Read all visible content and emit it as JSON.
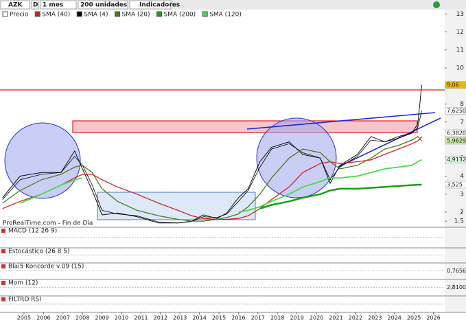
{
  "toolbar": {
    "symbol": "AZK",
    "mode": "D",
    "period": "1 mes",
    "units": "200 unidades",
    "indicators": "Indicadores"
  },
  "watermark": "ProRealTime.com - Fin de Día",
  "chart_data": {
    "type": "line",
    "x": [
      2003.9,
      2004.8,
      2005.9,
      2006.9,
      2007.6,
      2008.0,
      2008.5,
      2009.0,
      2009.8,
      2010.8,
      2011.9,
      2012.9,
      2013.6,
      2014.2,
      2014.9,
      2015.4,
      2016.0,
      2016.5,
      2017.1,
      2017.7,
      2018.6,
      2019.3,
      2020.2,
      2020.7,
      2021.2,
      2022.1,
      2022.8,
      2023.5,
      2024.2,
      2024.9,
      2025.2,
      2025.4
    ],
    "series": [
      {
        "name": "Precio",
        "color": "#111111",
        "width": 1,
        "values": [
          2.8,
          4.0,
          4.2,
          4.2,
          5.4,
          4.4,
          3.2,
          1.85,
          1.95,
          1.75,
          1.4,
          1.4,
          1.5,
          1.85,
          1.65,
          1.95,
          2.8,
          3.3,
          4.8,
          5.6,
          5.9,
          5.2,
          5.0,
          3.6,
          4.6,
          5.2,
          6.2,
          5.9,
          6.2,
          6.4,
          6.9,
          9.06
        ]
      },
      {
        "name": "SMA (40)",
        "color": "#d42020",
        "width": 1.3,
        "values": [
          2.2,
          2.6,
          3.0,
          3.5,
          3.9,
          4.1,
          4.1,
          3.8,
          3.4,
          3.0,
          2.5,
          2.1,
          1.8,
          1.65,
          1.6,
          1.6,
          1.65,
          1.8,
          2.2,
          2.7,
          3.4,
          4.2,
          4.7,
          4.8,
          4.7,
          4.8,
          4.9,
          5.2,
          5.5,
          5.8,
          5.95,
          6.2
        ]
      },
      {
        "name": "SMA (4)",
        "color": "#000000",
        "width": 0.8,
        "values": [
          2.7,
          3.8,
          4.1,
          4.2,
          5.1,
          4.6,
          3.5,
          2.1,
          1.9,
          1.8,
          1.45,
          1.4,
          1.48,
          1.75,
          1.7,
          1.9,
          2.6,
          3.2,
          4.5,
          5.5,
          5.8,
          5.3,
          5.0,
          3.8,
          4.5,
          5.1,
          6.0,
          5.9,
          6.1,
          6.382,
          6.7,
          7.625
        ]
      },
      {
        "name": "SMA (20)",
        "color": "#4a7a1c",
        "width": 1.3,
        "values": [
          2.5,
          3.2,
          3.8,
          4.1,
          4.5,
          4.6,
          4.2,
          3.3,
          2.6,
          2.1,
          1.8,
          1.6,
          1.5,
          1.5,
          1.6,
          1.7,
          1.9,
          2.3,
          3.0,
          3.9,
          5.0,
          5.5,
          5.3,
          4.8,
          4.4,
          4.6,
          5.0,
          5.5,
          5.7,
          6.0,
          6.2,
          5.9629
        ]
      },
      {
        "name": "SMA (200)",
        "color": "#17a017",
        "width": 2.5,
        "values": [
          null,
          null,
          null,
          null,
          null,
          null,
          null,
          null,
          null,
          null,
          null,
          null,
          null,
          null,
          null,
          null,
          null,
          null,
          2.2,
          2.4,
          2.6,
          2.8,
          3.0,
          3.2,
          3.3,
          3.3,
          3.35,
          3.4,
          3.45,
          3.5,
          3.52,
          3.525
        ]
      },
      {
        "name": "SMA (120)",
        "color": "#44dd44",
        "width": 1.8,
        "values": [
          null,
          2.5,
          3.0,
          3.5,
          3.8,
          3.9,
          null,
          null,
          null,
          null,
          null,
          null,
          null,
          null,
          null,
          null,
          2.0,
          2.1,
          2.3,
          2.6,
          3.0,
          3.4,
          3.7,
          3.9,
          3.9,
          4.0,
          4.2,
          4.4,
          4.5,
          4.6,
          4.8,
          4.9132
        ]
      }
    ],
    "xlim": [
      2003.77,
      2026.58
    ],
    "xticks": [
      2005,
      2006,
      2007,
      2008,
      2009,
      2010,
      2011,
      2012,
      2013,
      2014,
      2015,
      2016,
      2017,
      2018,
      2019,
      2020,
      2021,
      2022,
      2023,
      2024,
      2025,
      2026
    ],
    "ylim": [
      1.2,
      13.2
    ],
    "yticks": [
      1.5,
      2,
      3,
      4,
      5,
      6,
      7,
      8,
      9,
      10,
      11,
      12,
      13
    ],
    "price_labels": [
      {
        "value": 9.06,
        "label": "9,06",
        "color": "#e8b800"
      },
      {
        "value": 7.625,
        "label": "7,6250",
        "color": "#ffffff"
      },
      {
        "value": 6.382,
        "label": "6,3820",
        "color": "#ffffff"
      },
      {
        "value": 5.9629,
        "label": "5,9629",
        "color": "#c9e9a0"
      },
      {
        "value": 4.9132,
        "label": "4,9132",
        "color": "#ddf5dd"
      },
      {
        "value": 3.525,
        "label": "3,525",
        "color": "#ffffff"
      }
    ],
    "panels": [
      {
        "title": "MACD (12 26 9)"
      },
      {
        "title": "Estocástico (26 8 5)"
      },
      {
        "title": "Blai5 Koncorde v.09 (15)",
        "label": "0,7656"
      },
      {
        "title": "Mom (12)",
        "label": "2,8100"
      },
      {
        "title": "FILTRO RSI"
      }
    ]
  }
}
